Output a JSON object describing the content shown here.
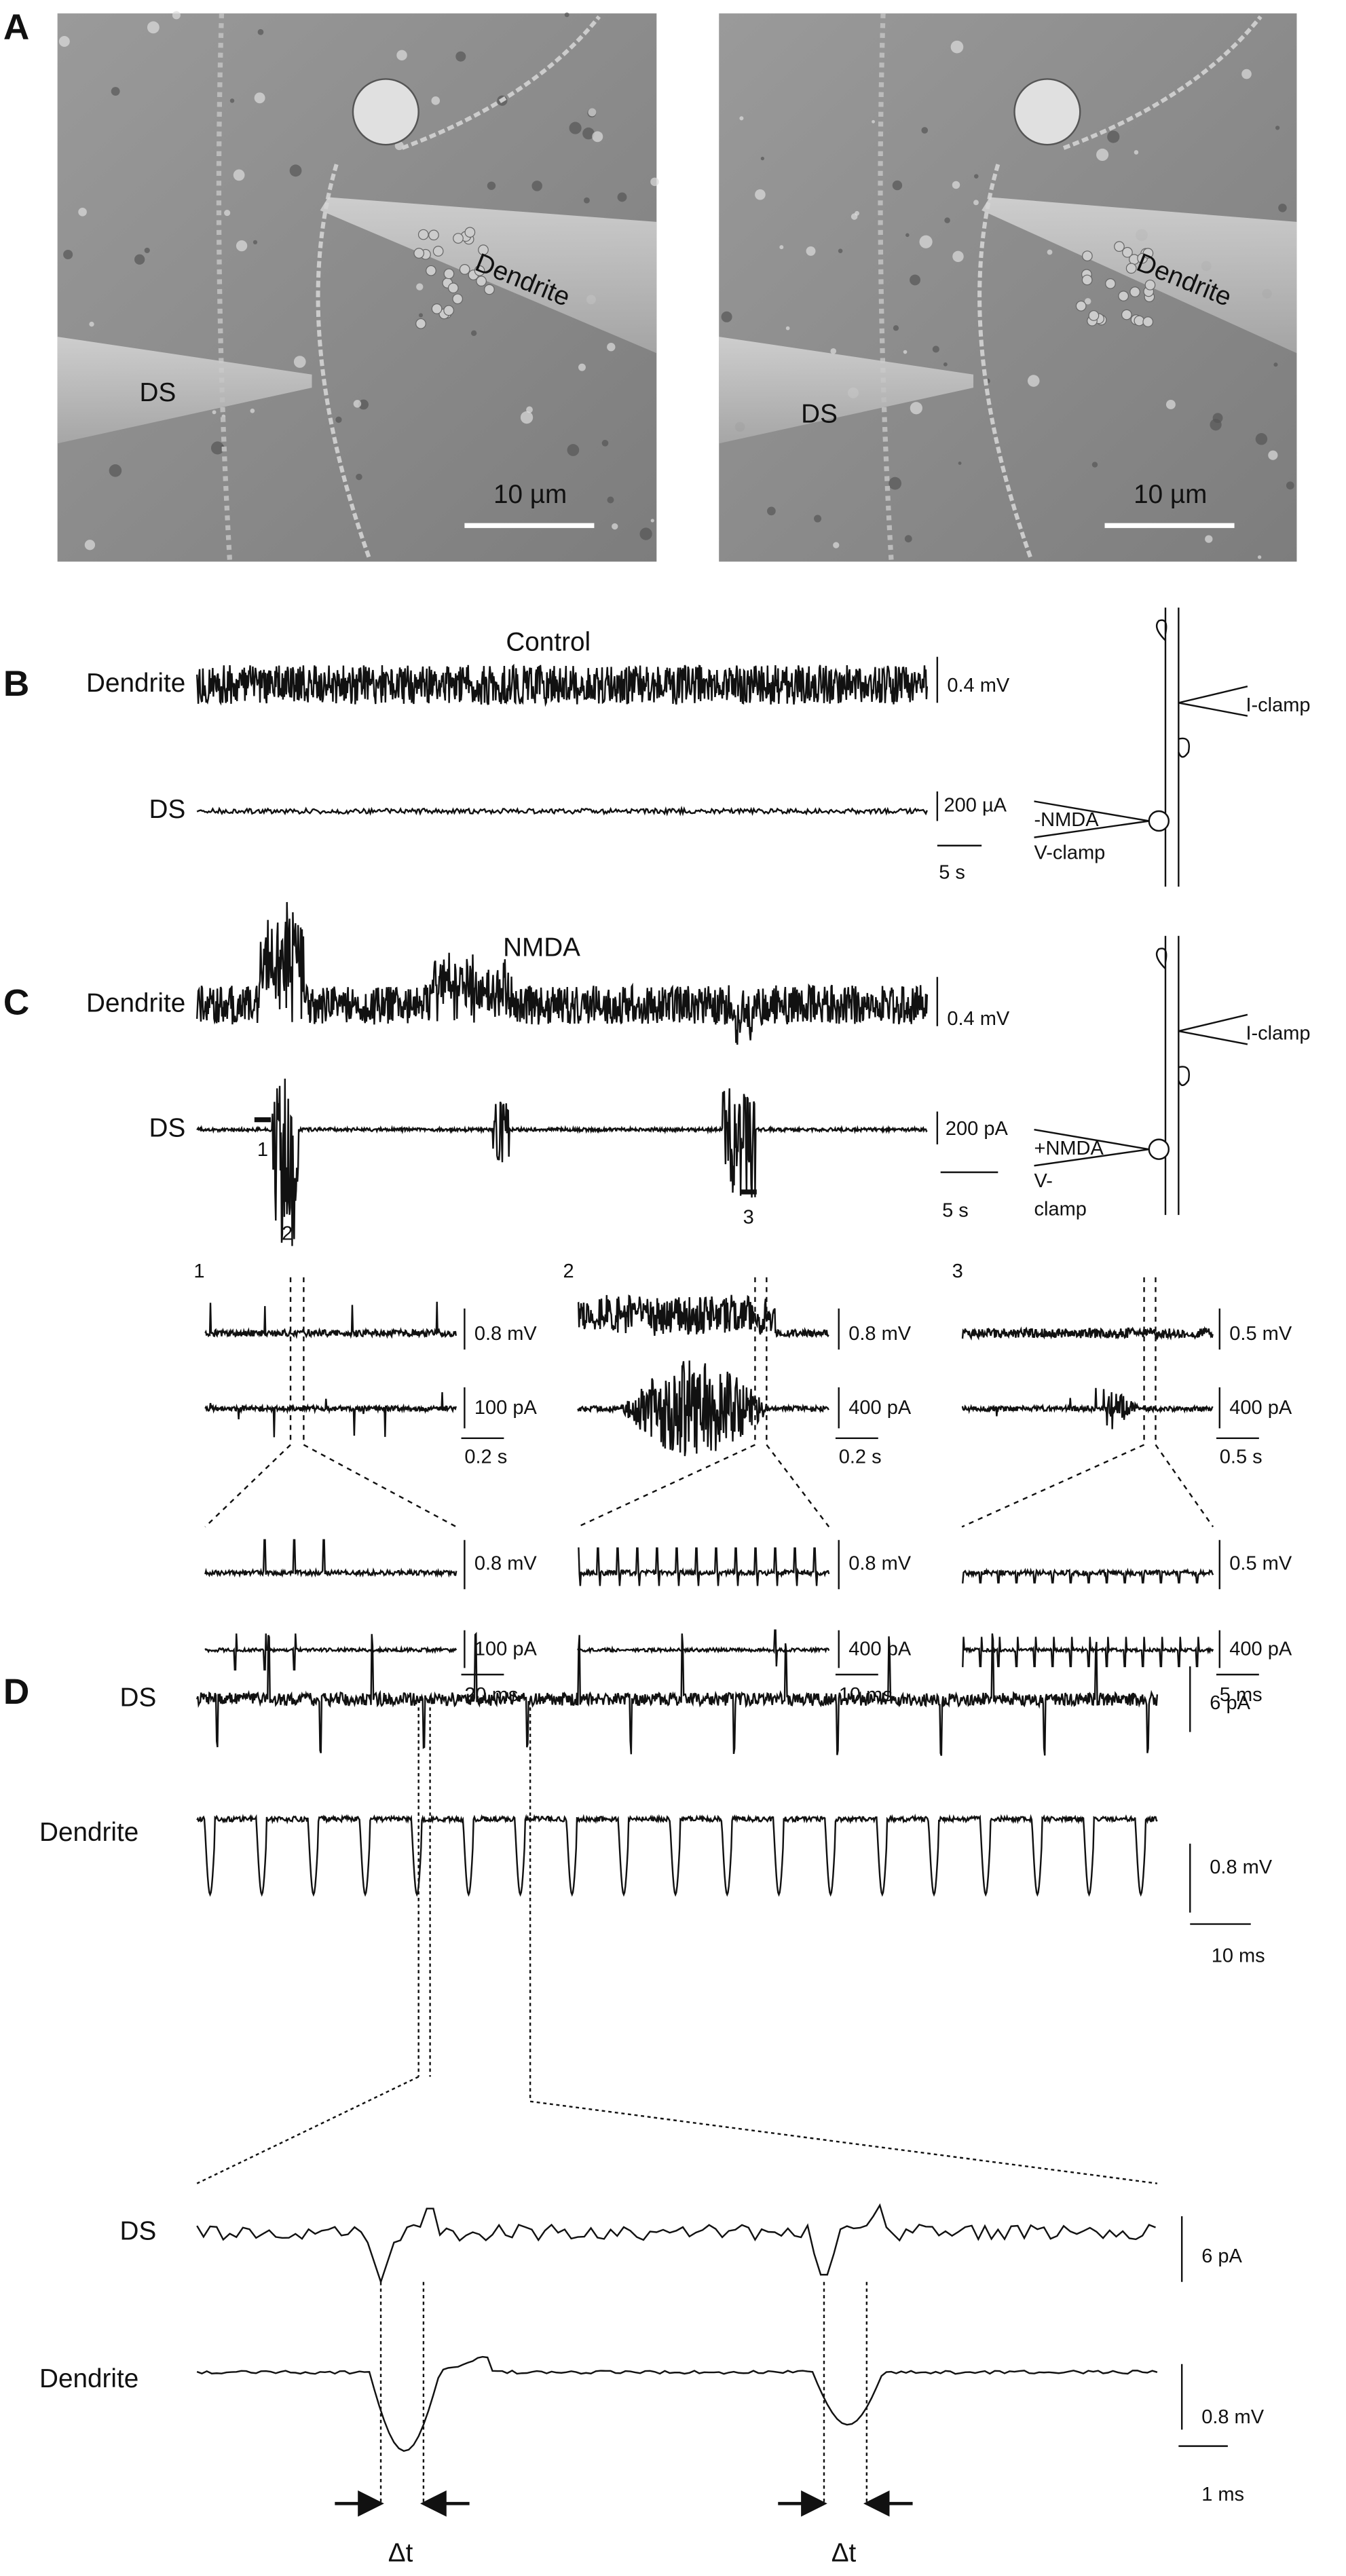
{
  "panel_a": {
    "label": "A",
    "left_image": {
      "pipette_labels": [
        "DS",
        "Dendrite"
      ],
      "scale_bar": "10 µm"
    },
    "right_image": {
      "pipette_labels": [
        "DS",
        "Dendrite"
      ],
      "scale_bar": "10 µm"
    }
  },
  "panel_b": {
    "label": "B",
    "condition": "Control",
    "trace_labels": [
      "Dendrite",
      "DS"
    ],
    "scale_bars": [
      "0.4 mV",
      "200 µA",
      "5 s"
    ],
    "schematic": [
      "I-clamp",
      "-NMDA",
      "V-clamp"
    ]
  },
  "panel_c": {
    "label": "C",
    "condition": "NMDA",
    "trace_labels": [
      "Dendrite",
      "DS"
    ],
    "scale_bars": [
      "0.4 mV",
      "200 pA",
      "5 s"
    ],
    "segment_markers": [
      "1",
      "2",
      "3"
    ],
    "schematic": [
      "I-clamp",
      "+NMDA",
      "V-",
      "clamp"
    ],
    "insets": [
      {
        "label": "1",
        "scale_bars": [
          "0.8 mV",
          "100 pA",
          "0.2 s"
        ],
        "zoom_scale_bars": [
          "0.8 mV",
          "100 pA",
          "20 ms"
        ]
      },
      {
        "label": "2",
        "scale_bars": [
          "0.8 mV",
          "400 pA",
          "0.2 s"
        ],
        "zoom_scale_bars": [
          "0.8 mV",
          "400 pA",
          "10 ms"
        ]
      },
      {
        "label": "3",
        "scale_bars": [
          "0.5 mV",
          "400 pA",
          "0.5 s"
        ],
        "zoom_scale_bars": [
          "0.5 mV",
          "400 pA",
          "5 ms"
        ]
      }
    ]
  },
  "panel_d": {
    "label": "D",
    "trace_labels": [
      "DS",
      "Dendrite"
    ],
    "scale_bars": [
      "6 pA",
      "0.8 mV",
      "10 ms"
    ],
    "expanded": {
      "trace_labels": [
        "DS",
        "Dendrite"
      ],
      "scale_bars": [
        "6 pA",
        "0.8 mV",
        "1 ms"
      ],
      "delay_labels": [
        "Δt",
        "Δt"
      ]
    }
  }
}
